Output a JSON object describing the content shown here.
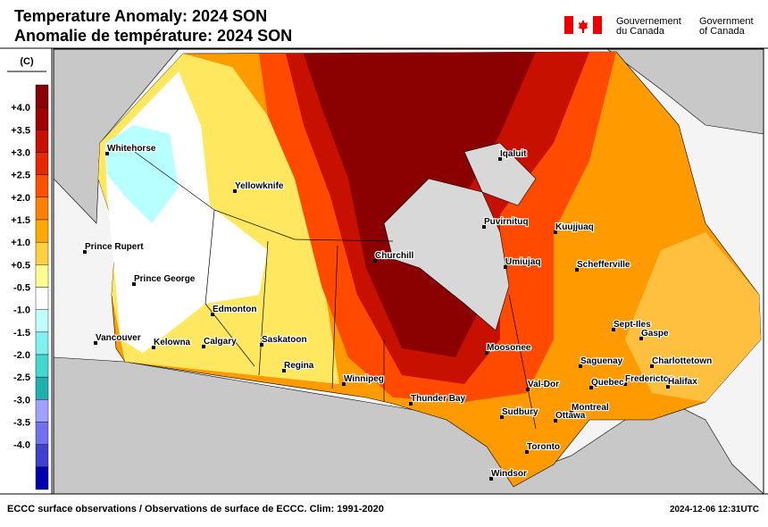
{
  "header": {
    "title": [
      "Temperature Anomaly: 2024 SON",
      "Anomalie de température: 2024 SON"
    ],
    "government": {
      "fr": [
        "Gouvernement",
        "du Canada"
      ],
      "en": [
        "Government",
        "of Canada"
      ]
    }
  },
  "legend": {
    "unit": "(C)",
    "labels": [
      "+4.0",
      "+3.5",
      "+3.0",
      "+2.5",
      "+2.0",
      "+1.5",
      "+1.0",
      "+0.5",
      "-0.5",
      "-1.0",
      "-1.5",
      "-2.0",
      "-2.5",
      "-3.0",
      "-3.5",
      "-4.0"
    ],
    "colors": [
      "#8b0000",
      "#a00000",
      "#c81000",
      "#e82800",
      "#ff5000",
      "#ff8000",
      "#ffa800",
      "#ffd040",
      "#ffff90",
      "#ffffff",
      "#c0ffff",
      "#80f0f0",
      "#40d8d0",
      "#20b0b0",
      "#a0a0ff",
      "#7070f0",
      "#4040d0",
      "#0000b0"
    ]
  },
  "map": {
    "cities": [
      "Whitehorse",
      "Yellowknife",
      "Prince Rupert",
      "Prince George",
      "Edmonton",
      "Vancouver",
      "Kelowna",
      "Calgary",
      "Saskatoon",
      "Regina",
      "Winnipeg",
      "Churchill",
      "Thunder Bay",
      "Iqaluit",
      "Puvirnituq",
      "Kuujjuaq",
      "Umiujaq",
      "Schefferville",
      "Sept-Iles",
      "Gaspe",
      "Moosonee",
      "Saguenay",
      "Charlottetown",
      "Fredericton",
      "Halifax",
      "Quebec",
      "Val-Dor",
      "Montreal",
      "Sudbury",
      "Ottawa",
      "Toronto",
      "Windsor"
    ]
  },
  "footer": {
    "source": "ECCC surface observations / Observations de surface de ECCC. Clim: 1991-2020",
    "timestamp": "2024-12-06 12:31UTC"
  }
}
